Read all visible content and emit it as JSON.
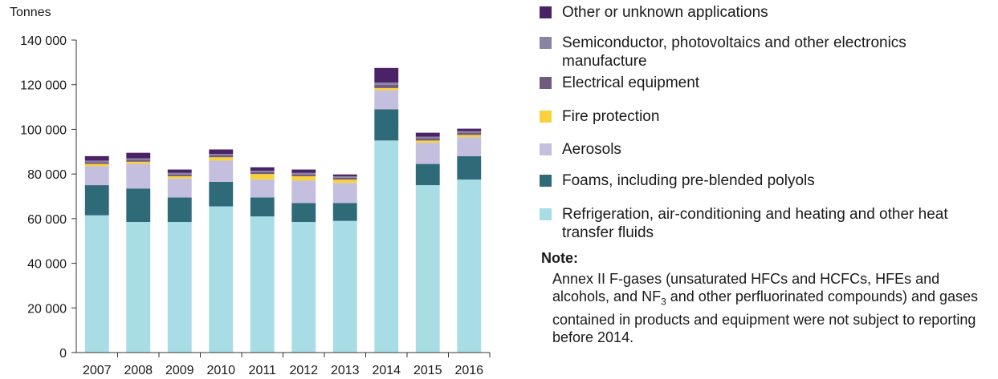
{
  "chart_data": {
    "type": "bar",
    "stacked": true,
    "ylabel": "Tonnes",
    "ylim": [
      0,
      140000
    ],
    "yticks": [
      {
        "value": 0,
        "label": "0"
      },
      {
        "value": 20000,
        "label": "20 000"
      },
      {
        "value": 40000,
        "label": "40 000"
      },
      {
        "value": 60000,
        "label": "60 000"
      },
      {
        "value": 80000,
        "label": "80 000"
      },
      {
        "value": 100000,
        "label": "100 000"
      },
      {
        "value": 120000,
        "label": "120 000"
      },
      {
        "value": 140000,
        "label": "140 000"
      }
    ],
    "categories": [
      "2007",
      "2008",
      "2009",
      "2010",
      "2011",
      "2012",
      "2013",
      "2014",
      "2015",
      "2016"
    ],
    "series": [
      {
        "name": "Refrigeration, air-conditioning and heating and other heat transfer fluids",
        "color": "#a8dde6",
        "values": [
          61500,
          58500,
          58500,
          65500,
          61000,
          58500,
          59000,
          95000,
          75000,
          77500
        ]
      },
      {
        "name": "Foams, including pre-blended polyols",
        "color": "#2e6a78",
        "values": [
          13500,
          15000,
          11000,
          11000,
          8500,
          8500,
          8000,
          14000,
          9500,
          10500
        ]
      },
      {
        "name": "Aerosols",
        "color": "#c4bedf",
        "values": [
          8500,
          11000,
          8500,
          9500,
          8000,
          10000,
          9000,
          8500,
          9500,
          8500
        ]
      },
      {
        "name": "Fire protection",
        "color": "#f9d13c",
        "values": [
          1000,
          1000,
          1000,
          1500,
          2500,
          2000,
          1500,
          1000,
          1000,
          1000
        ]
      },
      {
        "name": "Electrical equipment",
        "color": "#6f5b7e",
        "values": [
          800,
          800,
          800,
          800,
          800,
          800,
          800,
          1500,
          1000,
          1000
        ]
      },
      {
        "name": "Semiconductor, photovoltaics and other electronics manufacture",
        "color": "#8a83a3",
        "values": [
          700,
          700,
          700,
          700,
          700,
          700,
          700,
          1000,
          700,
          700
        ]
      },
      {
        "name": "Other or unknown applications",
        "color": "#4a2266",
        "values": [
          2000,
          2500,
          1500,
          2000,
          1500,
          1500,
          800,
          6500,
          1800,
          1100
        ]
      }
    ]
  },
  "legend": {
    "items": [
      {
        "label": "Other or unknown applications",
        "color": "#4a2266"
      },
      {
        "label": "Semiconductor, photovoltaics and other electronics manufacture",
        "color": "#8a83a3"
      },
      {
        "label": "Electrical equipment",
        "color": "#6f5b7e"
      },
      {
        "label": "Fire protection",
        "color": "#f9d13c"
      },
      {
        "label": "Aerosols",
        "color": "#c4bedf"
      },
      {
        "label": "Foams, including pre-blended polyols",
        "color": "#2e6a78"
      },
      {
        "label": "Refrigeration, air-conditioning and heating and other heat transfer fluids",
        "color": "#a8dde6"
      }
    ]
  },
  "note": {
    "title": "Note:",
    "text_before_sub": "Annex II F-gases (unsaturated HFCs and HCFCs, HFEs and alcohols, and NF",
    "subscript": "3",
    "text_after_sub": " and other perfluorinated compounds) and gases contained in products and equipment were not subject to reporting before 2014."
  }
}
